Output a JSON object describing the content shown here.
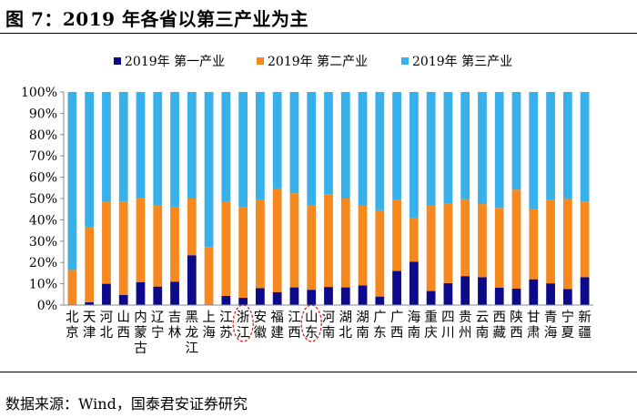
{
  "figure": {
    "title": "图 7：2019 年各省以第三产业为主",
    "source": "数据来源：Wind，国泰君安证券研究"
  },
  "colors": {
    "primary": "#0d0a8a",
    "secondary": "#f5891f",
    "tertiary": "#38b1ea",
    "highlight_circle": "#d9231d"
  },
  "highlighted_categories": [
    "浙江",
    "山东"
  ],
  "chart_data": {
    "type": "bar",
    "stacked": true,
    "percent": true,
    "title": "",
    "xlabel": "",
    "ylabel": "",
    "ylim": [
      0,
      100
    ],
    "yticks": [
      "0%",
      "10%",
      "20%",
      "30%",
      "40%",
      "50%",
      "60%",
      "70%",
      "80%",
      "90%",
      "100%"
    ],
    "legend_position": "top",
    "grid": false,
    "categories": [
      "北京",
      "天津",
      "河北",
      "山西",
      "内蒙古",
      "辽宁",
      "吉林",
      "黑龙江",
      "上海",
      "江苏",
      "浙江",
      "安徽",
      "福建",
      "江西",
      "山东",
      "河南",
      "湖北",
      "湖南",
      "广东",
      "广西",
      "海南",
      "重庆",
      "四川",
      "贵州",
      "云南",
      "西藏",
      "陕西",
      "甘肃",
      "青海",
      "宁夏",
      "新疆"
    ],
    "series": [
      {
        "name": "2019年 第一产业",
        "color": "#0d0a8a",
        "values": [
          0.3,
          1.3,
          10.0,
          4.8,
          10.8,
          8.7,
          11.0,
          23.4,
          0.3,
          4.3,
          3.4,
          7.9,
          6.1,
          8.3,
          7.2,
          8.5,
          8.3,
          9.2,
          4.0,
          16.0,
          20.3,
          6.6,
          10.3,
          13.6,
          13.1,
          8.2,
          7.7,
          12.1,
          10.2,
          7.5,
          13.1
        ]
      },
      {
        "name": "2019年 第二产业",
        "color": "#f5891f",
        "values": [
          16.2,
          35.2,
          38.7,
          43.8,
          39.6,
          38.3,
          35.2,
          26.6,
          27.0,
          44.4,
          42.6,
          41.3,
          48.6,
          44.2,
          39.8,
          43.5,
          41.7,
          37.6,
          40.5,
          33.3,
          20.7,
          40.2,
          37.3,
          36.1,
          34.3,
          37.4,
          46.5,
          32.8,
          39.1,
          42.3,
          35.3
        ]
      },
      {
        "name": "2019年 第三产业",
        "color": "#38b1ea",
        "values": [
          83.5,
          63.5,
          51.3,
          51.4,
          49.6,
          53.0,
          53.8,
          50.0,
          72.7,
          51.3,
          54.0,
          50.8,
          45.3,
          47.5,
          53.0,
          48.0,
          50.0,
          53.2,
          55.5,
          50.7,
          59.0,
          53.2,
          52.4,
          50.3,
          52.6,
          54.4,
          45.8,
          55.1,
          50.7,
          50.2,
          51.6
        ]
      }
    ]
  }
}
